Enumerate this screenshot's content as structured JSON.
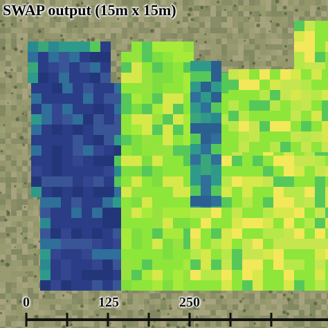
{
  "map": {
    "title": "SWAP output (15m x 15m)",
    "scale_bar": {
      "labels": [
        {
          "text": "0",
          "value": 0
        },
        {
          "text": "125",
          "value": 125
        },
        {
          "text": "250",
          "value": 250
        }
      ]
    },
    "colors": {
      "very_low": "#2a3d86",
      "low": "#2f6f9a",
      "medium_low": "#2f9a8a",
      "medium": "#56c85a",
      "high": "#8ee63a",
      "very_high": "#d6e84a",
      "max": "#f2e85a",
      "background_field": "#9a9b72",
      "scale_bar": "#111111"
    }
  }
}
